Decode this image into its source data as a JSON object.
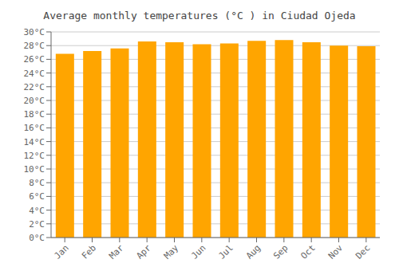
{
  "chart_data": {
    "type": "bar",
    "title": "Average monthly temperatures (°C ) in Ciudad Ojeda",
    "categories": [
      "Jan",
      "Feb",
      "Mar",
      "Apr",
      "May",
      "Jun",
      "Jul",
      "Aug",
      "Sep",
      "Oct",
      "Nov",
      "Dec"
    ],
    "values": [
      26.8,
      27.2,
      27.6,
      28.6,
      28.5,
      28.2,
      28.3,
      28.7,
      28.8,
      28.5,
      28.0,
      27.9
    ],
    "color": "#FFA500",
    "ylim": [
      0,
      30
    ],
    "yticks": [
      {
        "value": 0,
        "label": "0°C"
      },
      {
        "value": 2,
        "label": "2°C"
      },
      {
        "value": 4,
        "label": "4°C"
      },
      {
        "value": 6,
        "label": "6°C"
      },
      {
        "value": 8,
        "label": "8°C"
      },
      {
        "value": 10,
        "label": "10°C"
      },
      {
        "value": 12,
        "label": "12°C"
      },
      {
        "value": 14,
        "label": "14°C"
      },
      {
        "value": 16,
        "label": "16°C"
      },
      {
        "value": 18,
        "label": "18°C"
      },
      {
        "value": 20,
        "label": "20°C"
      },
      {
        "value": 22,
        "label": "22°C"
      },
      {
        "value": 24,
        "label": "24°C"
      },
      {
        "value": 26,
        "label": "26°C"
      },
      {
        "value": 28,
        "label": "28°C"
      },
      {
        "value": 30,
        "label": "30°C"
      }
    ],
    "grid": true
  }
}
